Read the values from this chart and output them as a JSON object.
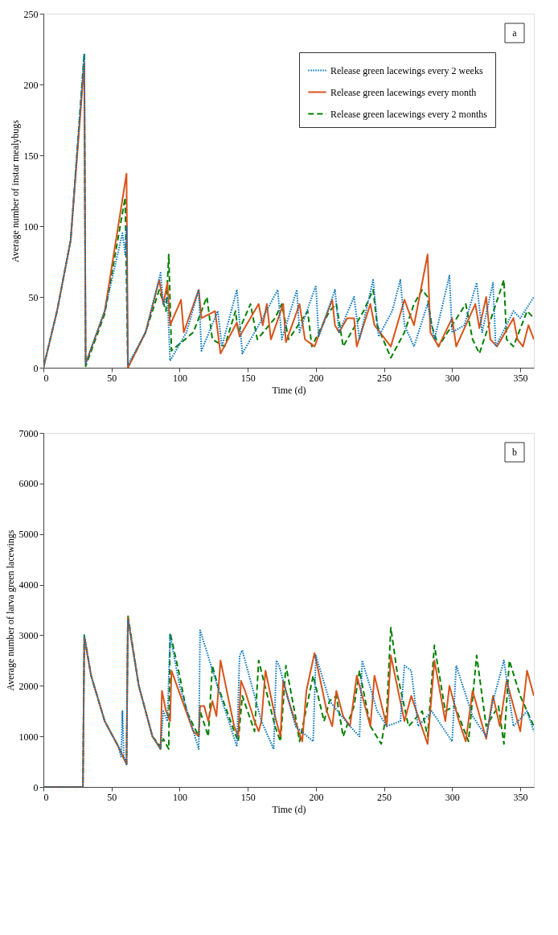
{
  "chart_data": [
    {
      "type": "line",
      "xlabel": "Time (d)",
      "ylabel": "Average number of instar mealybugs",
      "xlim": [
        0,
        360
      ],
      "ylim": [
        0,
        250
      ],
      "xticks": [
        0,
        50,
        100,
        150,
        200,
        250,
        300,
        350
      ],
      "yticks": [
        0,
        50,
        100,
        150,
        200,
        250
      ],
      "grid": false,
      "legend": "top right",
      "marker": "none",
      "annotations": [
        "a"
      ],
      "series": [
        {
          "name": "Release green lacewings every 2 weeks",
          "color": "#0072bd",
          "line_style": "dotted",
          "x": [
            0,
            10,
            20,
            30,
            31,
            45,
            58,
            60,
            61,
            62,
            75,
            86,
            88,
            91,
            93,
            105,
            114,
            116,
            128,
            131,
            142,
            146,
            158,
            172,
            175,
            186,
            188,
            200,
            202,
            214,
            217,
            228,
            232,
            242,
            246,
            256,
            262,
            265,
            272,
            282,
            287,
            298,
            300,
            309,
            318,
            322,
            330,
            332,
            345,
            350,
            360
          ],
          "values": [
            0,
            40,
            90,
            222,
            3,
            40,
            95,
            80,
            100,
            2,
            25,
            67,
            45,
            50,
            5,
            25,
            55,
            12,
            40,
            15,
            55,
            10,
            30,
            55,
            20,
            55,
            25,
            58,
            22,
            55,
            25,
            50,
            20,
            62,
            22,
            40,
            62,
            30,
            15,
            45,
            20,
            65,
            25,
            30,
            60,
            25,
            60,
            15,
            40,
            35,
            50
          ]
        },
        {
          "name": "Release green lacewings every month",
          "color": "#d95319",
          "line_style": "solid",
          "x": [
            0,
            10,
            20,
            30,
            31,
            45,
            61,
            62,
            75,
            85,
            88,
            91,
            93,
            101,
            103,
            114,
            116,
            122,
            126,
            130,
            142,
            144,
            158,
            161,
            164,
            167,
            176,
            178,
            188,
            192,
            199,
            212,
            214,
            217,
            223,
            228,
            230,
            240,
            243,
            255,
            265,
            268,
            272,
            282,
            284,
            290,
            300,
            303,
            317,
            320,
            325,
            328,
            333,
            345,
            348,
            352,
            356,
            360
          ],
          "values": [
            0,
            40,
            90,
            215,
            3,
            40,
            137,
            0,
            25,
            62,
            45,
            60,
            30,
            48,
            25,
            55,
            35,
            38,
            40,
            10,
            32,
            22,
            45,
            30,
            45,
            20,
            45,
            18,
            45,
            20,
            15,
            48,
            30,
            25,
            35,
            35,
            15,
            45,
            30,
            15,
            48,
            40,
            30,
            80,
            25,
            15,
            35,
            15,
            45,
            28,
            50,
            20,
            15,
            35,
            20,
            15,
            30,
            20
          ]
        },
        {
          "name": "Release green lacewings every 2 months",
          "color": "#008000",
          "line_style": "dashed",
          "x": [
            0,
            10,
            20,
            30,
            31,
            45,
            60,
            62,
            75,
            85,
            90,
            92,
            94,
            110,
            120,
            124,
            133,
            141,
            143,
            152,
            157,
            170,
            175,
            180,
            194,
            197,
            210,
            215,
            220,
            235,
            242,
            245,
            255,
            265,
            272,
            278,
            282,
            285,
            290,
            310,
            315,
            320,
            338,
            340,
            345,
            355,
            360
          ],
          "values": [
            0,
            40,
            90,
            222,
            1,
            38,
            120,
            0,
            25,
            55,
            40,
            80,
            12,
            25,
            50,
            20,
            15,
            40,
            25,
            45,
            20,
            35,
            45,
            20,
            40,
            15,
            40,
            45,
            15,
            40,
            55,
            30,
            7,
            25,
            45,
            55,
            50,
            30,
            15,
            45,
            20,
            10,
            62,
            20,
            15,
            40,
            35
          ]
        }
      ]
    },
    {
      "type": "line",
      "xlabel": "Time (d)",
      "ylabel": "Average number of larva green lacewings",
      "xlim": [
        0,
        360
      ],
      "ylim": [
        0,
        7000
      ],
      "xticks": [
        0,
        50,
        100,
        150,
        200,
        250,
        300,
        350
      ],
      "yticks": [
        0,
        1000,
        2000,
        3000,
        4000,
        5000,
        6000,
        7000
      ],
      "grid": false,
      "legend": "top right",
      "marker": "none",
      "annotations": [
        "b"
      ],
      "series": [
        {
          "name": "Release green lacewings every 2 weeks",
          "color": "#0072bd",
          "line_style": "dotted",
          "x": [
            0,
            29,
            30,
            35,
            45,
            55,
            57,
            58,
            59,
            61,
            62,
            70,
            80,
            86,
            88,
            91,
            93,
            100,
            114,
            115,
            130,
            142,
            144,
            146,
            160,
            169,
            171,
            173,
            185,
            198,
            200,
            210,
            225,
            232,
            234,
            245,
            252,
            262,
            265,
            270,
            275,
            285,
            300,
            303,
            315,
            325,
            330,
            338,
            345,
            355,
            360
          ],
          "values": [
            0,
            0,
            3000,
            2200,
            1300,
            800,
            600,
            1500,
            600,
            450,
            3300,
            2000,
            1000,
            750,
            1500,
            1300,
            3000,
            2000,
            750,
            3100,
            1800,
            800,
            2600,
            2700,
            1300,
            750,
            2500,
            2400,
            1200,
            900,
            2600,
            1700,
            1200,
            1000,
            2500,
            1500,
            1200,
            1300,
            2400,
            2300,
            1200,
            1500,
            900,
            2400,
            1400,
            1000,
            1700,
            2500,
            1200,
            1500,
            1100
          ]
        },
        {
          "name": "Release green lacewings every month",
          "color": "#d95319",
          "line_style": "solid",
          "x": [
            0,
            29,
            30,
            35,
            45,
            55,
            61,
            62,
            70,
            80,
            86,
            87,
            90,
            93,
            94,
            110,
            114,
            115,
            118,
            121,
            124,
            127,
            130,
            140,
            143,
            145,
            148,
            155,
            158,
            160,
            163,
            170,
            174,
            176,
            180,
            186,
            190,
            193,
            199,
            208,
            212,
            215,
            220,
            225,
            230,
            240,
            243,
            252,
            255,
            265,
            270,
            275,
            282,
            287,
            295,
            298,
            305,
            310,
            315,
            325,
            330,
            335,
            340,
            350,
            355,
            358,
            360
          ],
          "values": [
            0,
            0,
            2950,
            2200,
            1300,
            800,
            450,
            3350,
            2000,
            1000,
            750,
            1900,
            1500,
            1300,
            2300,
            1100,
            1000,
            1600,
            1600,
            1300,
            1700,
            1400,
            2500,
            1200,
            1000,
            2100,
            1900,
            1300,
            1100,
            1300,
            2300,
            1400,
            1000,
            2100,
            1700,
            1200,
            900,
            1900,
            2650,
            1500,
            1200,
            1900,
            1400,
            1200,
            2200,
            1200,
            2200,
            1200,
            2600,
            1300,
            1800,
            1400,
            850,
            2500,
            1300,
            2000,
            1300,
            900,
            1900,
            950,
            1800,
            1200,
            2100,
            1100,
            2300,
            2000,
            1800
          ]
        },
        {
          "name": "Release green lacewings every 2 months",
          "color": "#008000",
          "line_style": "dashed",
          "x": [
            0,
            29,
            30,
            35,
            45,
            55,
            61,
            62,
            70,
            80,
            86,
            88,
            92,
            93,
            100,
            105,
            114,
            115,
            121,
            124,
            128,
            140,
            143,
            146,
            155,
            158,
            170,
            174,
            178,
            185,
            188,
            198,
            206,
            210,
            215,
            220,
            228,
            232,
            240,
            248,
            252,
            255,
            260,
            268,
            278,
            282,
            287,
            295,
            302,
            312,
            318,
            325,
            334,
            338,
            342,
            350,
            355,
            360
          ],
          "values": [
            0,
            0,
            3000,
            2200,
            1300,
            800,
            450,
            3400,
            2000,
            1000,
            800,
            950,
            750,
            3050,
            2200,
            1500,
            1000,
            1500,
            1000,
            2400,
            2000,
            1100,
            900,
            1800,
            1100,
            2500,
            1200,
            900,
            2400,
            1400,
            900,
            2200,
            1300,
            1700,
            1800,
            1000,
            1600,
            2300,
            1200,
            850,
            1500,
            3150,
            2200,
            1200,
            1500,
            1000,
            2800,
            1500,
            1600,
            900,
            2600,
            1200,
            1600,
            850,
            2500,
            1800,
            1500,
            1200
          ]
        }
      ]
    }
  ]
}
